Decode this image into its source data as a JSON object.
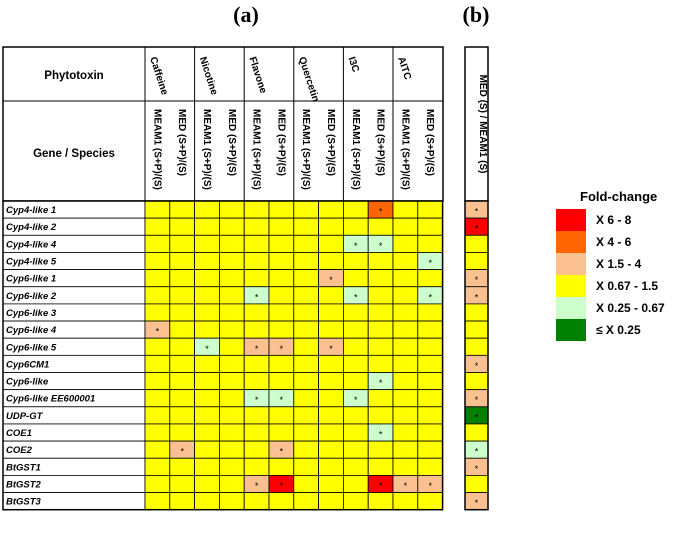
{
  "panel_a_label": "(a)",
  "panel_b_label": "(b)",
  "header": {
    "phytotoxin_label": "Phytotoxin",
    "gene_species_label": "Gene /  Species"
  },
  "legend": {
    "title": "Fold-change",
    "items": [
      {
        "label": "X 6 - 8",
        "color": "#ff0000"
      },
      {
        "label": "X 4 - 6",
        "color": "#ff6600"
      },
      {
        "label": "X 1.5 - 4",
        "color": "#fac090"
      },
      {
        "label": "X 0.67 - 1.5",
        "color": "#ffff00"
      },
      {
        "label": "X 0.25 - 0.67",
        "color": "#ccffcc"
      },
      {
        "label": "≤ X 0.25",
        "color": "#008000"
      }
    ]
  },
  "chart_data": {
    "type": "heatmap",
    "phytotoxins": [
      "Caffeine",
      "Nicotine",
      "Flavone",
      "Quercetin",
      "I3C",
      "AITC"
    ],
    "columns": [
      {
        "phytotoxin": "Caffeine",
        "label": "MEAM1 (S+P)/(S)"
      },
      {
        "phytotoxin": "Caffeine",
        "label": "MED (S+P)/(S)"
      },
      {
        "phytotoxin": "Nicotine",
        "label": "MEAM1 (S+P)/(S)"
      },
      {
        "phytotoxin": "Nicotine",
        "label": "MED (S+P)/(S)"
      },
      {
        "phytotoxin": "Flavone",
        "label": "MEAM1 (S+P)/(S)"
      },
      {
        "phytotoxin": "Flavone",
        "label": "MED (S+P)/(S)"
      },
      {
        "phytotoxin": "Quercetin",
        "label": "MEAM1 (S+P)/(S)"
      },
      {
        "phytotoxin": "Quercetin",
        "label": "MED (S+P)/(S)"
      },
      {
        "phytotoxin": "I3C",
        "label": "MEAM1 (S+P)/(S)"
      },
      {
        "phytotoxin": "I3C",
        "label": "MED (S+P)/(S)"
      },
      {
        "phytotoxin": "AITC",
        "label": "MEAM1 (S+P)/(S)"
      },
      {
        "phytotoxin": "AITC",
        "label": "MED (S+P)/(S)"
      }
    ],
    "panel_b_column": "MED (S) / MEAM1 (S)",
    "genes": [
      "Cyp4-like 1",
      "Cyp4-like 2",
      "Cyp4-like 4",
      "Cyp4-like 5",
      "Cyp6-like 1",
      "Cyp6-like 2",
      "Cyp6-like 3",
      "Cyp6-like 4",
      "Cyp6-like 5",
      "Cyp6CM1",
      "Cyp6-like",
      "Cyp6-like EE600001",
      "UDP-GT",
      "COE1",
      "COE2",
      "BtGST1",
      "BtGST2",
      "BtGST3"
    ],
    "categories": [
      "X 6 - 8",
      "X 4 - 6",
      "X 1.5 - 4",
      "X 0.67 - 1.5",
      "X 0.25 - 0.67",
      "≤ X 0.25"
    ],
    "cells_a": [
      [
        "X 0.67 - 1.5",
        "X 0.67 - 1.5",
        "X 0.67 - 1.5",
        "X 0.67 - 1.5",
        "X 0.67 - 1.5",
        "X 0.67 - 1.5",
        "X 0.67 - 1.5",
        "X 0.67 - 1.5",
        "X 0.67 - 1.5",
        "X 4 - 6",
        "X 0.67 - 1.5",
        "X 0.67 - 1.5"
      ],
      [
        "X 0.67 - 1.5",
        "X 0.67 - 1.5",
        "X 0.67 - 1.5",
        "X 0.67 - 1.5",
        "X 0.67 - 1.5",
        "X 0.67 - 1.5",
        "X 0.67 - 1.5",
        "X 0.67 - 1.5",
        "X 0.67 - 1.5",
        "X 0.67 - 1.5",
        "X 0.67 - 1.5",
        "X 0.67 - 1.5"
      ],
      [
        "X 0.67 - 1.5",
        "X 0.67 - 1.5",
        "X 0.67 - 1.5",
        "X 0.67 - 1.5",
        "X 0.67 - 1.5",
        "X 0.67 - 1.5",
        "X 0.67 - 1.5",
        "X 0.67 - 1.5",
        "X 0.25 - 0.67",
        "X 0.25 - 0.67",
        "X 0.67 - 1.5",
        "X 0.67 - 1.5"
      ],
      [
        "X 0.67 - 1.5",
        "X 0.67 - 1.5",
        "X 0.67 - 1.5",
        "X 0.67 - 1.5",
        "X 0.67 - 1.5",
        "X 0.67 - 1.5",
        "X 0.67 - 1.5",
        "X 0.67 - 1.5",
        "X 0.67 - 1.5",
        "X 0.67 - 1.5",
        "X 0.67 - 1.5",
        "X 0.25 - 0.67"
      ],
      [
        "X 0.67 - 1.5",
        "X 0.67 - 1.5",
        "X 0.67 - 1.5",
        "X 0.67 - 1.5",
        "X 0.67 - 1.5",
        "X 0.67 - 1.5",
        "X 0.67 - 1.5",
        "X 1.5 - 4",
        "X 0.67 - 1.5",
        "X 0.67 - 1.5",
        "X 0.67 - 1.5",
        "X 0.67 - 1.5"
      ],
      [
        "X 0.67 - 1.5",
        "X 0.67 - 1.5",
        "X 0.67 - 1.5",
        "X 0.67 - 1.5",
        "X 0.25 - 0.67",
        "X 0.67 - 1.5",
        "X 0.67 - 1.5",
        "X 0.67 - 1.5",
        "X 0.25 - 0.67",
        "X 0.67 - 1.5",
        "X 0.67 - 1.5",
        "X 0.25 - 0.67"
      ],
      [
        "X 0.67 - 1.5",
        "X 0.67 - 1.5",
        "X 0.67 - 1.5",
        "X 0.67 - 1.5",
        "X 0.67 - 1.5",
        "X 0.67 - 1.5",
        "X 0.67 - 1.5",
        "X 0.67 - 1.5",
        "X 0.67 - 1.5",
        "X 0.67 - 1.5",
        "X 0.67 - 1.5",
        "X 0.67 - 1.5"
      ],
      [
        "X 1.5 - 4",
        "X 0.67 - 1.5",
        "X 0.67 - 1.5",
        "X 0.67 - 1.5",
        "X 0.67 - 1.5",
        "X 0.67 - 1.5",
        "X 0.67 - 1.5",
        "X 0.67 - 1.5",
        "X 0.67 - 1.5",
        "X 0.67 - 1.5",
        "X 0.67 - 1.5",
        "X 0.67 - 1.5"
      ],
      [
        "X 0.67 - 1.5",
        "X 0.67 - 1.5",
        "X 0.25 - 0.67",
        "X 0.67 - 1.5",
        "X 1.5 - 4",
        "X 1.5 - 4",
        "X 0.67 - 1.5",
        "X 1.5 - 4",
        "X 0.67 - 1.5",
        "X 0.67 - 1.5",
        "X 0.67 - 1.5",
        "X 0.67 - 1.5"
      ],
      [
        "X 0.67 - 1.5",
        "X 0.67 - 1.5",
        "X 0.67 - 1.5",
        "X 0.67 - 1.5",
        "X 0.67 - 1.5",
        "X 0.67 - 1.5",
        "X 0.67 - 1.5",
        "X 0.67 - 1.5",
        "X 0.67 - 1.5",
        "X 0.67 - 1.5",
        "X 0.67 - 1.5",
        "X 0.67 - 1.5"
      ],
      [
        "X 0.67 - 1.5",
        "X 0.67 - 1.5",
        "X 0.67 - 1.5",
        "X 0.67 - 1.5",
        "X 0.67 - 1.5",
        "X 0.67 - 1.5",
        "X 0.67 - 1.5",
        "X 0.67 - 1.5",
        "X 0.67 - 1.5",
        "X 0.25 - 0.67",
        "X 0.67 - 1.5",
        "X 0.67 - 1.5"
      ],
      [
        "X 0.67 - 1.5",
        "X 0.67 - 1.5",
        "X 0.67 - 1.5",
        "X 0.67 - 1.5",
        "X 0.25 - 0.67",
        "X 0.25 - 0.67",
        "X 0.67 - 1.5",
        "X 0.67 - 1.5",
        "X 0.25 - 0.67",
        "X 0.67 - 1.5",
        "X 0.67 - 1.5",
        "X 0.67 - 1.5"
      ],
      [
        "X 0.67 - 1.5",
        "X 0.67 - 1.5",
        "X 0.67 - 1.5",
        "X 0.67 - 1.5",
        "X 0.67 - 1.5",
        "X 0.67 - 1.5",
        "X 0.67 - 1.5",
        "X 0.67 - 1.5",
        "X 0.67 - 1.5",
        "X 0.67 - 1.5",
        "X 0.67 - 1.5",
        "X 0.67 - 1.5"
      ],
      [
        "X 0.67 - 1.5",
        "X 0.67 - 1.5",
        "X 0.67 - 1.5",
        "X 0.67 - 1.5",
        "X 0.67 - 1.5",
        "X 0.67 - 1.5",
        "X 0.67 - 1.5",
        "X 0.67 - 1.5",
        "X 0.67 - 1.5",
        "X 0.25 - 0.67",
        "X 0.67 - 1.5",
        "X 0.67 - 1.5"
      ],
      [
        "X 0.67 - 1.5",
        "X 1.5 - 4",
        "X 0.67 - 1.5",
        "X 0.67 - 1.5",
        "X 0.67 - 1.5",
        "X 1.5 - 4",
        "X 0.67 - 1.5",
        "X 0.67 - 1.5",
        "X 0.67 - 1.5",
        "X 0.67 - 1.5",
        "X 0.67 - 1.5",
        "X 0.67 - 1.5"
      ],
      [
        "X 0.67 - 1.5",
        "X 0.67 - 1.5",
        "X 0.67 - 1.5",
        "X 0.67 - 1.5",
        "X 0.67 - 1.5",
        "X 0.67 - 1.5",
        "X 0.67 - 1.5",
        "X 0.67 - 1.5",
        "X 0.67 - 1.5",
        "X 0.67 - 1.5",
        "X 0.67 - 1.5",
        "X 0.67 - 1.5"
      ],
      [
        "X 0.67 - 1.5",
        "X 0.67 - 1.5",
        "X 0.67 - 1.5",
        "X 0.67 - 1.5",
        "X 1.5 - 4",
        "X 6 - 8",
        "X 0.67 - 1.5",
        "X 0.67 - 1.5",
        "X 0.67 - 1.5",
        "X 6 - 8",
        "X 1.5 - 4",
        "X 1.5 - 4"
      ],
      [
        "X 0.67 - 1.5",
        "X 0.67 - 1.5",
        "X 0.67 - 1.5",
        "X 0.67 - 1.5",
        "X 0.67 - 1.5",
        "X 0.67 - 1.5",
        "X 0.67 - 1.5",
        "X 0.67 - 1.5",
        "X 0.67 - 1.5",
        "X 0.67 - 1.5",
        "X 0.67 - 1.5",
        "X 0.67 - 1.5"
      ]
    ],
    "cells_b": [
      "X 1.5 - 4",
      "X 6 - 8",
      "X 0.67 - 1.5",
      "X 0.67 - 1.5",
      "X 1.5 - 4",
      "X 1.5 - 4",
      "X 0.67 - 1.5",
      "X 0.67 - 1.5",
      "X 0.67 - 1.5",
      "X 1.5 - 4",
      "X 0.67 - 1.5",
      "X 1.5 - 4",
      "≤ X 0.25",
      "X 0.67 - 1.5",
      "X 0.25 - 0.67",
      "X 1.5 - 4",
      "X 0.67 - 1.5",
      "X 1.5 - 4"
    ],
    "significance_marker": "*",
    "significant_a": [
      [
        0,
        9
      ],
      [
        2,
        8
      ],
      [
        2,
        9
      ],
      [
        3,
        11
      ],
      [
        4,
        7
      ],
      [
        5,
        4
      ],
      [
        5,
        8
      ],
      [
        5,
        11
      ],
      [
        7,
        0
      ],
      [
        8,
        2
      ],
      [
        8,
        4
      ],
      [
        8,
        5
      ],
      [
        8,
        7
      ],
      [
        10,
        9
      ],
      [
        11,
        4
      ],
      [
        11,
        5
      ],
      [
        11,
        8
      ],
      [
        13,
        9
      ],
      [
        14,
        1
      ],
      [
        14,
        5
      ],
      [
        16,
        4
      ],
      [
        16,
        5
      ],
      [
        16,
        9
      ],
      [
        16,
        10
      ],
      [
        16,
        11
      ]
    ],
    "significant_b": [
      0,
      1,
      4,
      5,
      9,
      11,
      12,
      14,
      15,
      17
    ]
  }
}
